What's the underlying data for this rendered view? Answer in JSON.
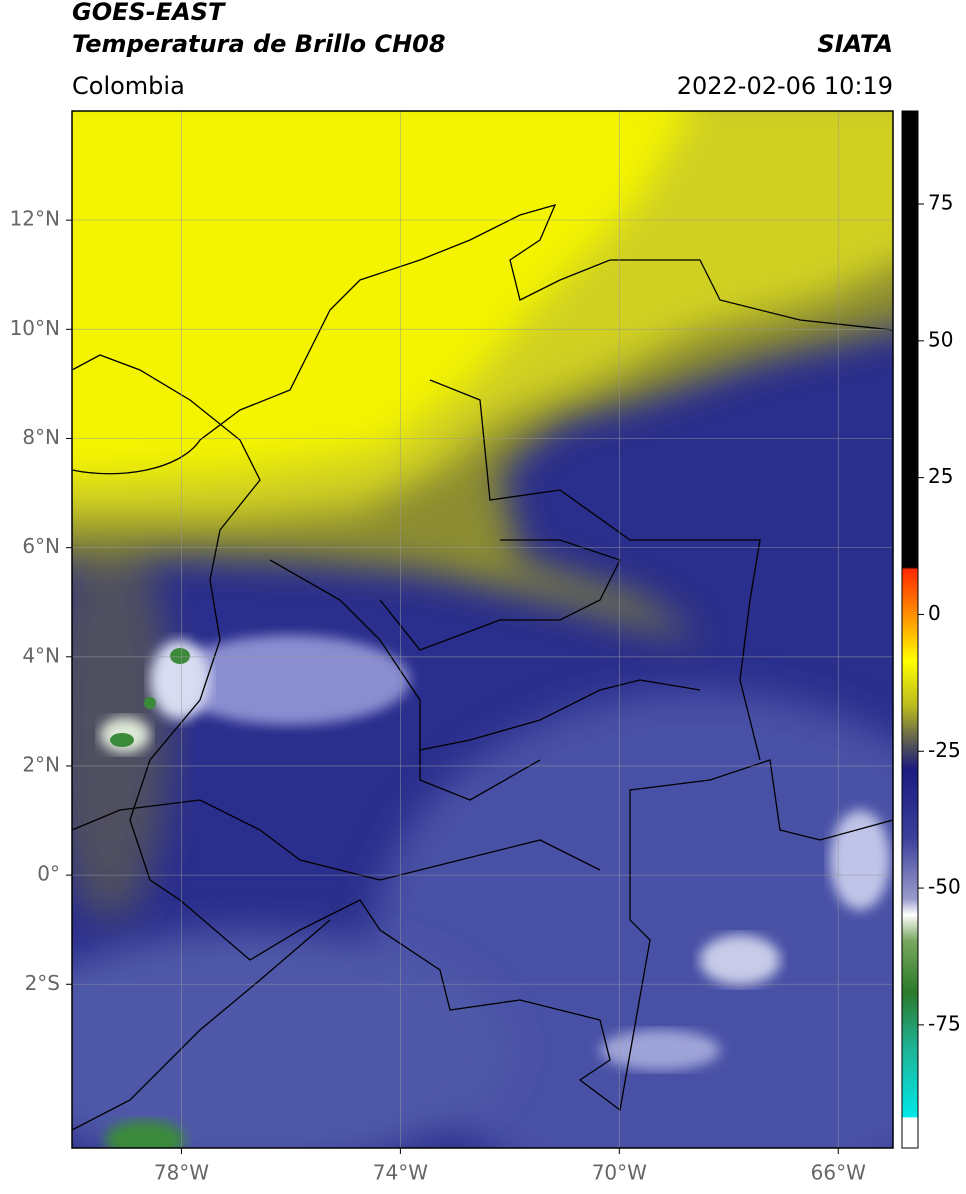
{
  "header": {
    "title": "GOES-EAST",
    "subtitle": "Temperatura de Brillo CH08",
    "source": "SIATA",
    "region": "Colombia",
    "timestamp": "2022-02-06 10:19"
  },
  "map": {
    "xlim": [
      -80,
      -65
    ],
    "ylim": [
      -5,
      14
    ],
    "xticks": [
      {
        "value": -78,
        "label": "78°W"
      },
      {
        "value": -74,
        "label": "74°W"
      },
      {
        "value": -70,
        "label": "70°W"
      },
      {
        "value": -66,
        "label": "66°W"
      }
    ],
    "yticks": [
      {
        "value": 12,
        "label": "12°N"
      },
      {
        "value": 10,
        "label": "10°N"
      },
      {
        "value": 8,
        "label": "8°N"
      },
      {
        "value": 6,
        "label": "6°N"
      },
      {
        "value": 4,
        "label": "4°N"
      },
      {
        "value": 2,
        "label": "2°N"
      },
      {
        "value": 0,
        "label": "0°"
      },
      {
        "value": -2,
        "label": "2°S"
      }
    ],
    "grid": true
  },
  "colorbar": {
    "clim": [
      -97.5,
      92
    ],
    "ticks": [
      75,
      50,
      25,
      0,
      -25,
      -50,
      -75
    ]
  }
}
